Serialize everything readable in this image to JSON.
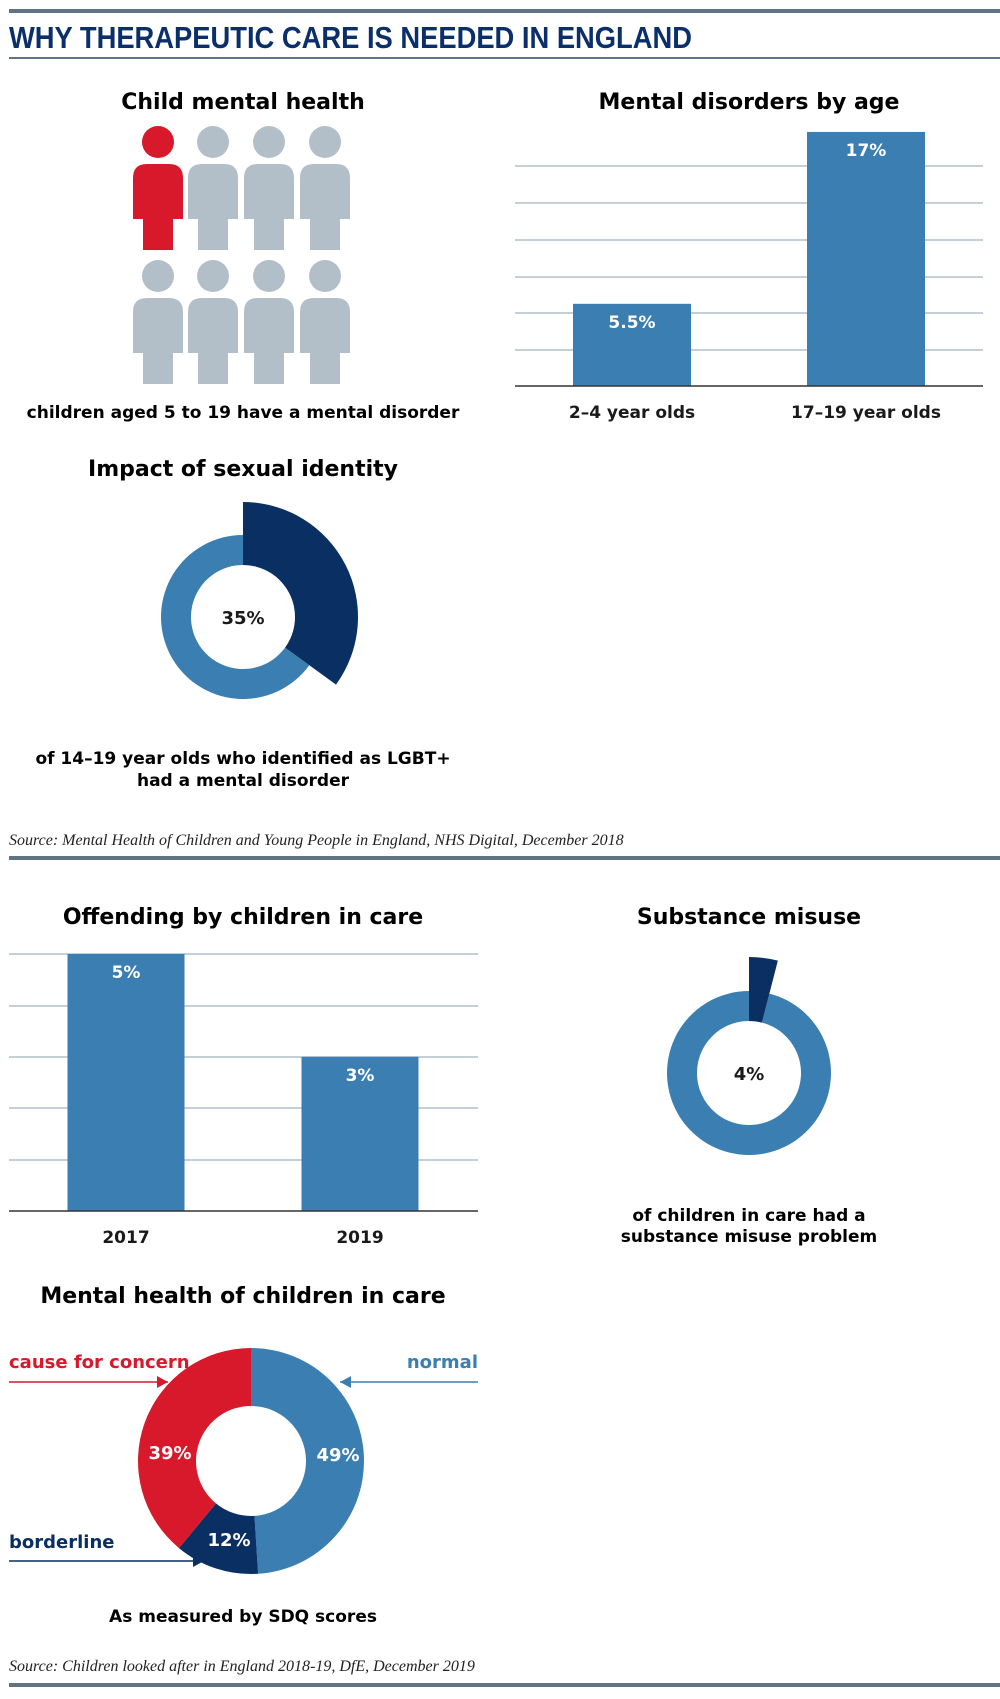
{
  "title": "WHY THERAPEUTIC CARE IS NEEDED IN ENGLAND",
  "colors": {
    "title": "#0b2f6b",
    "rule": "#5f7585",
    "bar": "#3b7eb2",
    "dark": "#0a2f63",
    "red": "#d7192b",
    "grey": "#b2bfc9",
    "grid": "#9fb3bf",
    "axis": "#333333"
  },
  "section1": {
    "child_mental_health": {
      "title": "Child mental health",
      "icons_total": 8,
      "icons_highlighted": 1,
      "icon": "person-icon",
      "caption": "children aged 5 to 19 have a mental disorder"
    },
    "disorders_by_age": {
      "title": "Mental disorders by age"
    },
    "sexual_identity": {
      "title": "Impact of sexual identity",
      "caption_line1": "of 14–19 year olds who identified as LGBT+",
      "caption_line2": "had a mental disorder"
    },
    "source": "Source: Mental Health of Children and Young People in England, NHS Digital, December 2018"
  },
  "section2": {
    "offending": {
      "title": "Offending by children in care"
    },
    "substance": {
      "title": "Substance misuse",
      "caption_line1": "of children in care had a",
      "caption_line2": "substance misuse problem"
    },
    "mental_health_care": {
      "title": "Mental health of children in care",
      "caption": "As measured by SDQ scores"
    },
    "source": "Source: Children looked after in England 2018-19, DfE, December 2019"
  },
  "chart_data": [
    {
      "type": "pictogram",
      "title": "Child mental health",
      "total": 8,
      "highlighted": 1
    },
    {
      "type": "bar",
      "title": "Mental disorders by age",
      "categories": [
        "2–4 year olds",
        "17–19 year olds"
      ],
      "values": [
        5.5,
        17
      ],
      "data_labels": [
        "5.5%",
        "17%"
      ],
      "ylim": [
        0,
        18
      ],
      "grid": true
    },
    {
      "type": "pie",
      "title": "Impact of sexual identity",
      "labels": [
        "",
        ""
      ],
      "values": [
        35,
        65
      ],
      "center_label": "35%"
    },
    {
      "type": "bar",
      "title": "Offending by children in care",
      "categories": [
        "2017",
        "2019"
      ],
      "values": [
        5,
        3
      ],
      "data_labels": [
        "5%",
        "3%"
      ],
      "ylim": [
        0,
        5
      ],
      "grid": true
    },
    {
      "type": "pie",
      "title": "Substance misuse",
      "labels": [
        "",
        ""
      ],
      "values": [
        4,
        96
      ],
      "center_label": "4%"
    },
    {
      "type": "pie",
      "title": "Mental health of children in care",
      "labels": [
        "normal",
        "borderline",
        "cause for concern"
      ],
      "values": [
        49,
        12,
        39
      ],
      "data_labels": [
        "49%",
        "12%",
        "39%"
      ]
    }
  ]
}
